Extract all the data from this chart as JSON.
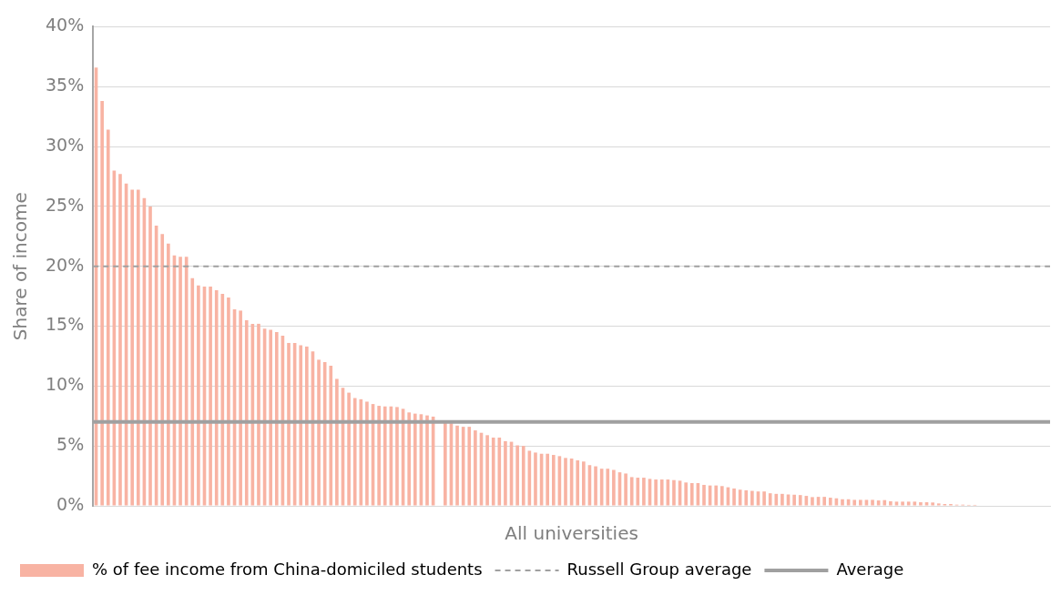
{
  "chart_data": {
    "type": "bar",
    "xlabel": "All universities",
    "ylabel": "Share of income",
    "categories": [
      null,
      null,
      null,
      null,
      null,
      null,
      null,
      null,
      null,
      null,
      null,
      null,
      null,
      null,
      null,
      null,
      null,
      null,
      null,
      null,
      null,
      null,
      null,
      null,
      null,
      null,
      null,
      null,
      null,
      null,
      null,
      null,
      null,
      null,
      null,
      null,
      null,
      null,
      null,
      null,
      null,
      null,
      null,
      null,
      null,
      null,
      null,
      null,
      null,
      null,
      null,
      null,
      null,
      null,
      null,
      null,
      null,
      null,
      null,
      null,
      null,
      null,
      null,
      null,
      null,
      null,
      null,
      null,
      null,
      null,
      null,
      null,
      null,
      null,
      null,
      null,
      null,
      null,
      null,
      null,
      null,
      null,
      null,
      null,
      null,
      null,
      null,
      null,
      null,
      null,
      null,
      null,
      null,
      null,
      null,
      null,
      null,
      null,
      null,
      null,
      null,
      null,
      null,
      null,
      null,
      null,
      null,
      null,
      null,
      null,
      null,
      null,
      null,
      null,
      null,
      null,
      null,
      null,
      null,
      null,
      null,
      null,
      null,
      null,
      null,
      null,
      null,
      null,
      null,
      null,
      null,
      null,
      null,
      null,
      null,
      null,
      null,
      null,
      null,
      null,
      null,
      null,
      null,
      null,
      null,
      null,
      null,
      null,
      null,
      null,
      null,
      null,
      null,
      null,
      null,
      null,
      null,
      null,
      null
    ],
    "series": [
      {
        "name": "% of fee income from China-domiciled students",
        "color": "#f8b3a3",
        "values": [
          36.6,
          33.8,
          31.4,
          28.0,
          27.7,
          26.9,
          26.4,
          26.4,
          25.7,
          25.0,
          23.4,
          22.7,
          21.9,
          20.9,
          20.8,
          20.8,
          19.0,
          18.4,
          18.3,
          18.3,
          18.0,
          17.7,
          17.4,
          16.4,
          16.3,
          15.5,
          15.2,
          15.2,
          14.8,
          14.7,
          14.5,
          14.2,
          13.6,
          13.6,
          13.4,
          13.3,
          12.9,
          12.2,
          12.0,
          11.7,
          10.6,
          9.85,
          9.45,
          9.0,
          8.9,
          8.7,
          8.5,
          8.35,
          8.3,
          8.3,
          8.25,
          8.1,
          7.8,
          7.7,
          7.65,
          7.55,
          7.45,
          null,
          7.0,
          6.9,
          6.7,
          6.6,
          6.6,
          6.3,
          6.1,
          5.9,
          5.7,
          5.7,
          5.4,
          5.35,
          5.05,
          5.0,
          4.6,
          4.45,
          4.35,
          4.35,
          4.25,
          4.15,
          4.0,
          3.95,
          3.8,
          3.7,
          3.4,
          3.3,
          3.1,
          3.1,
          3.0,
          2.8,
          2.7,
          2.4,
          2.35,
          2.35,
          2.25,
          2.2,
          2.2,
          2.2,
          2.15,
          2.1,
          1.95,
          1.9,
          1.9,
          1.75,
          1.7,
          1.7,
          1.65,
          1.55,
          1.45,
          1.35,
          1.3,
          1.25,
          1.2,
          1.2,
          1.05,
          1.0,
          1.0,
          0.95,
          0.93,
          0.9,
          0.83,
          0.73,
          0.75,
          0.75,
          0.68,
          0.63,
          0.55,
          0.55,
          0.5,
          0.5,
          0.5,
          0.5,
          0.45,
          0.48,
          0.38,
          0.35,
          0.35,
          0.35,
          0.35,
          0.3,
          0.3,
          0.28,
          0.2,
          0.15,
          0.15,
          0.1,
          0.1,
          0.08,
          0.08,
          null,
          null,
          null,
          null,
          null,
          null,
          null,
          null,
          null,
          null,
          null,
          null
        ]
      }
    ],
    "ylim": [
      0,
      40
    ],
    "yticks": [
      {
        "value": 0,
        "label": "0%"
      },
      {
        "value": 5,
        "label": "5%"
      },
      {
        "value": 10,
        "label": "10%"
      },
      {
        "value": 15,
        "label": "15%"
      },
      {
        "value": 20,
        "label": "20%"
      },
      {
        "value": 25,
        "label": "25%"
      },
      {
        "value": 30,
        "label": "30%"
      },
      {
        "value": 35,
        "label": "35%"
      },
      {
        "value": 40,
        "label": "40%"
      }
    ],
    "ref_lines": [
      {
        "axis": "y",
        "value": 20,
        "label": "Russell Group average",
        "color": "#a0a0a0",
        "line_style": "dashed"
      },
      {
        "axis": "y",
        "value": 7,
        "label": "Average",
        "color": "#a0a0a0",
        "line_style": "solid"
      }
    ],
    "grid": "y",
    "legend": "bottom"
  }
}
